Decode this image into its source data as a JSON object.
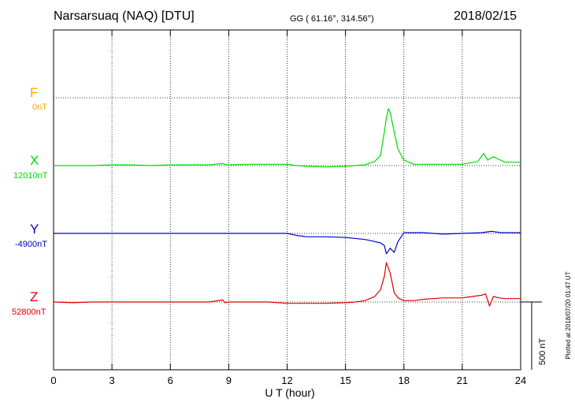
{
  "header": {
    "station": "Narsarsuaq (NAQ)  [DTU]",
    "coords": "GG ( 61.16°, 314.56°)",
    "date": "2018/02/15"
  },
  "footer": {
    "plotted": "Plotted at 2018/07/20 01:47 UT"
  },
  "colors": {
    "F": "#ffa500",
    "X": "#00dd00",
    "Y": "#0000cc",
    "Z": "#dd0000"
  },
  "chart_data": {
    "type": "line",
    "title": "Narsarsuaq (NAQ)  [DTU]",
    "xlabel": "U T (hour)",
    "xlim": [
      0,
      24
    ],
    "x_ticks": [
      "0",
      "3",
      "6",
      "9",
      "12",
      "15",
      "18",
      "21",
      "24"
    ],
    "scale_bar": "500 nT",
    "grid": true,
    "series": [
      {
        "name": "F",
        "baseline": "0nT",
        "x": [],
        "values": []
      },
      {
        "name": "X",
        "baseline": "12010nT",
        "x": [
          0,
          1,
          2,
          3,
          4,
          5,
          6,
          7,
          8,
          8.7,
          8.8,
          9,
          10,
          11,
          12,
          12.5,
          13,
          14,
          15,
          16,
          16.5,
          16.8,
          17.0,
          17.1,
          17.2,
          17.3,
          17.5,
          17.7,
          18,
          18.5,
          19,
          20,
          21,
          21.8,
          22.1,
          22.3,
          22.6,
          22.9,
          23.2,
          24
        ],
        "values": [
          0,
          0,
          0,
          5,
          5,
          0,
          5,
          5,
          5,
          15,
          10,
          5,
          10,
          10,
          10,
          0,
          -5,
          -10,
          -5,
          5,
          30,
          75,
          250,
          350,
          420,
          390,
          250,
          120,
          40,
          10,
          10,
          10,
          10,
          30,
          90,
          40,
          65,
          45,
          25,
          25
        ]
      },
      {
        "name": "Y",
        "baseline": "-4900nT",
        "x": [
          0,
          1,
          2,
          3,
          4,
          5,
          6,
          7,
          8,
          9,
          10,
          11,
          12,
          12.5,
          13,
          14,
          15,
          16,
          16.5,
          16.8,
          17.0,
          17.1,
          17.3,
          17.5,
          17.7,
          18,
          18.5,
          19,
          20,
          21,
          22,
          22.5,
          23,
          24
        ],
        "values": [
          0,
          0,
          0,
          0,
          0,
          0,
          0,
          0,
          0,
          0,
          0,
          0,
          0,
          -15,
          -25,
          -25,
          -30,
          -45,
          -60,
          -70,
          -90,
          -150,
          -110,
          -140,
          -60,
          5,
          5,
          5,
          -5,
          0,
          5,
          15,
          5,
          5
        ]
      },
      {
        "name": "Z",
        "baseline": "52800nT",
        "x": [
          0,
          1,
          2,
          3,
          4,
          5,
          6,
          7,
          8,
          8.7,
          8.8,
          9,
          10,
          11,
          12,
          13,
          14,
          15,
          15.5,
          16,
          16.5,
          16.8,
          17.0,
          17.1,
          17.3,
          17.5,
          17.7,
          18,
          18.5,
          19,
          20,
          21,
          21.5,
          22,
          22.2,
          22.4,
          22.6,
          22.9,
          23.2,
          24
        ],
        "values": [
          0,
          -5,
          0,
          0,
          0,
          0,
          0,
          0,
          0,
          15,
          -5,
          0,
          0,
          0,
          -10,
          -10,
          -10,
          -5,
          0,
          10,
          40,
          90,
          190,
          290,
          210,
          70,
          30,
          10,
          10,
          20,
          30,
          30,
          40,
          50,
          60,
          -30,
          40,
          30,
          25,
          25
        ]
      }
    ]
  }
}
